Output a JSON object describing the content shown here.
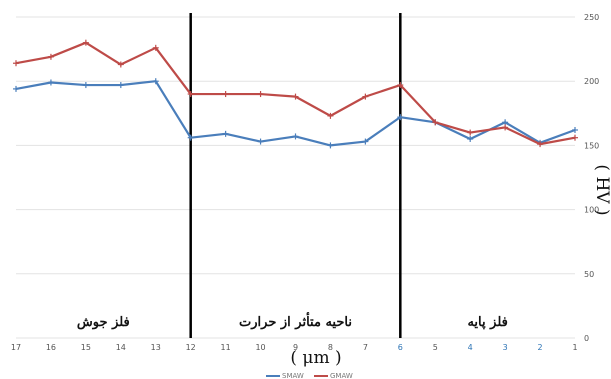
{
  "chart_data": {
    "type": "line",
    "x": [
      17,
      16,
      15,
      14,
      13,
      12,
      11,
      10,
      9,
      8,
      7,
      6,
      5,
      4,
      3,
      2,
      1
    ],
    "x_tick_labels": [
      "17",
      "16",
      "15",
      "14",
      "13",
      "12",
      "11",
      "10",
      "9",
      "8",
      "7",
      "6",
      "5",
      "4",
      "3",
      "2",
      "1"
    ],
    "series": [
      {
        "name": "SMAW",
        "color": "#4a7ebb",
        "values": [
          194,
          199,
          197,
          197,
          200,
          156,
          159,
          153,
          157,
          150,
          153,
          172,
          168,
          155,
          168,
          152,
          162
        ]
      },
      {
        "name": "GMAW",
        "color": "#be4b48",
        "values": [
          214,
          219,
          230,
          213,
          226,
          190,
          190,
          190,
          188,
          173,
          188,
          197,
          168,
          160,
          164,
          151,
          156
        ]
      }
    ],
    "ylim": [
      0,
      250
    ],
    "y_ticks": [
      "0",
      "50",
      "100",
      "150",
      "200",
      "250"
    ],
    "xlabel": "( μm )",
    "ylabel": "( HV )",
    "boundaries_at_x": [
      12,
      6
    ],
    "regions": [
      {
        "label": "فلز جوش",
        "x_from": 17,
        "x_to": 12
      },
      {
        "label": "ناحیه متأثر از حرارت",
        "x_from": 12,
        "x_to": 6
      },
      {
        "label": "فلز پایه",
        "x_from": 6,
        "x_to": 1
      }
    ],
    "grid": true,
    "legend_position": "bottom-center",
    "colors": {
      "grid": "#e3e3e3",
      "boundary": "#000000"
    }
  }
}
